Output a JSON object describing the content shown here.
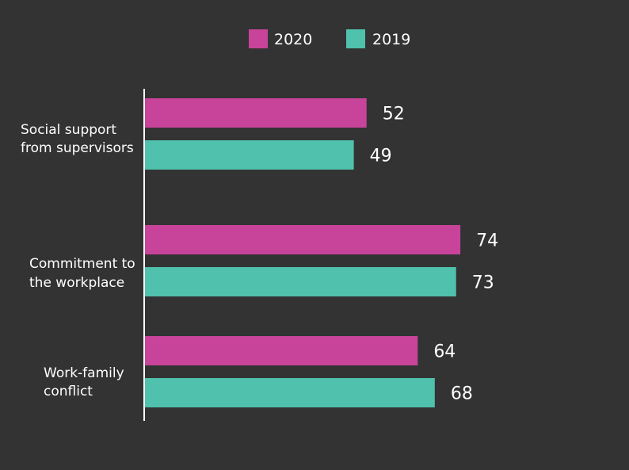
{
  "chart_data": {
    "type": "bar",
    "orientation": "horizontal",
    "categories": [
      [
        "Social support",
        "from supervisors"
      ],
      [
        "Commitment to",
        "the workplace"
      ],
      [
        "Work-family",
        "conflict"
      ]
    ],
    "series": [
      {
        "name": "2020",
        "color": "#c8439a",
        "values": [
          52,
          74,
          64
        ]
      },
      {
        "name": "2019",
        "color": "#4fc1ad",
        "values": [
          49,
          73,
          68
        ]
      }
    ],
    "xlim": [
      0,
      80
    ],
    "grid": false,
    "legend_position": "top-center",
    "title": "",
    "xlabel": "",
    "ylabel": ""
  }
}
